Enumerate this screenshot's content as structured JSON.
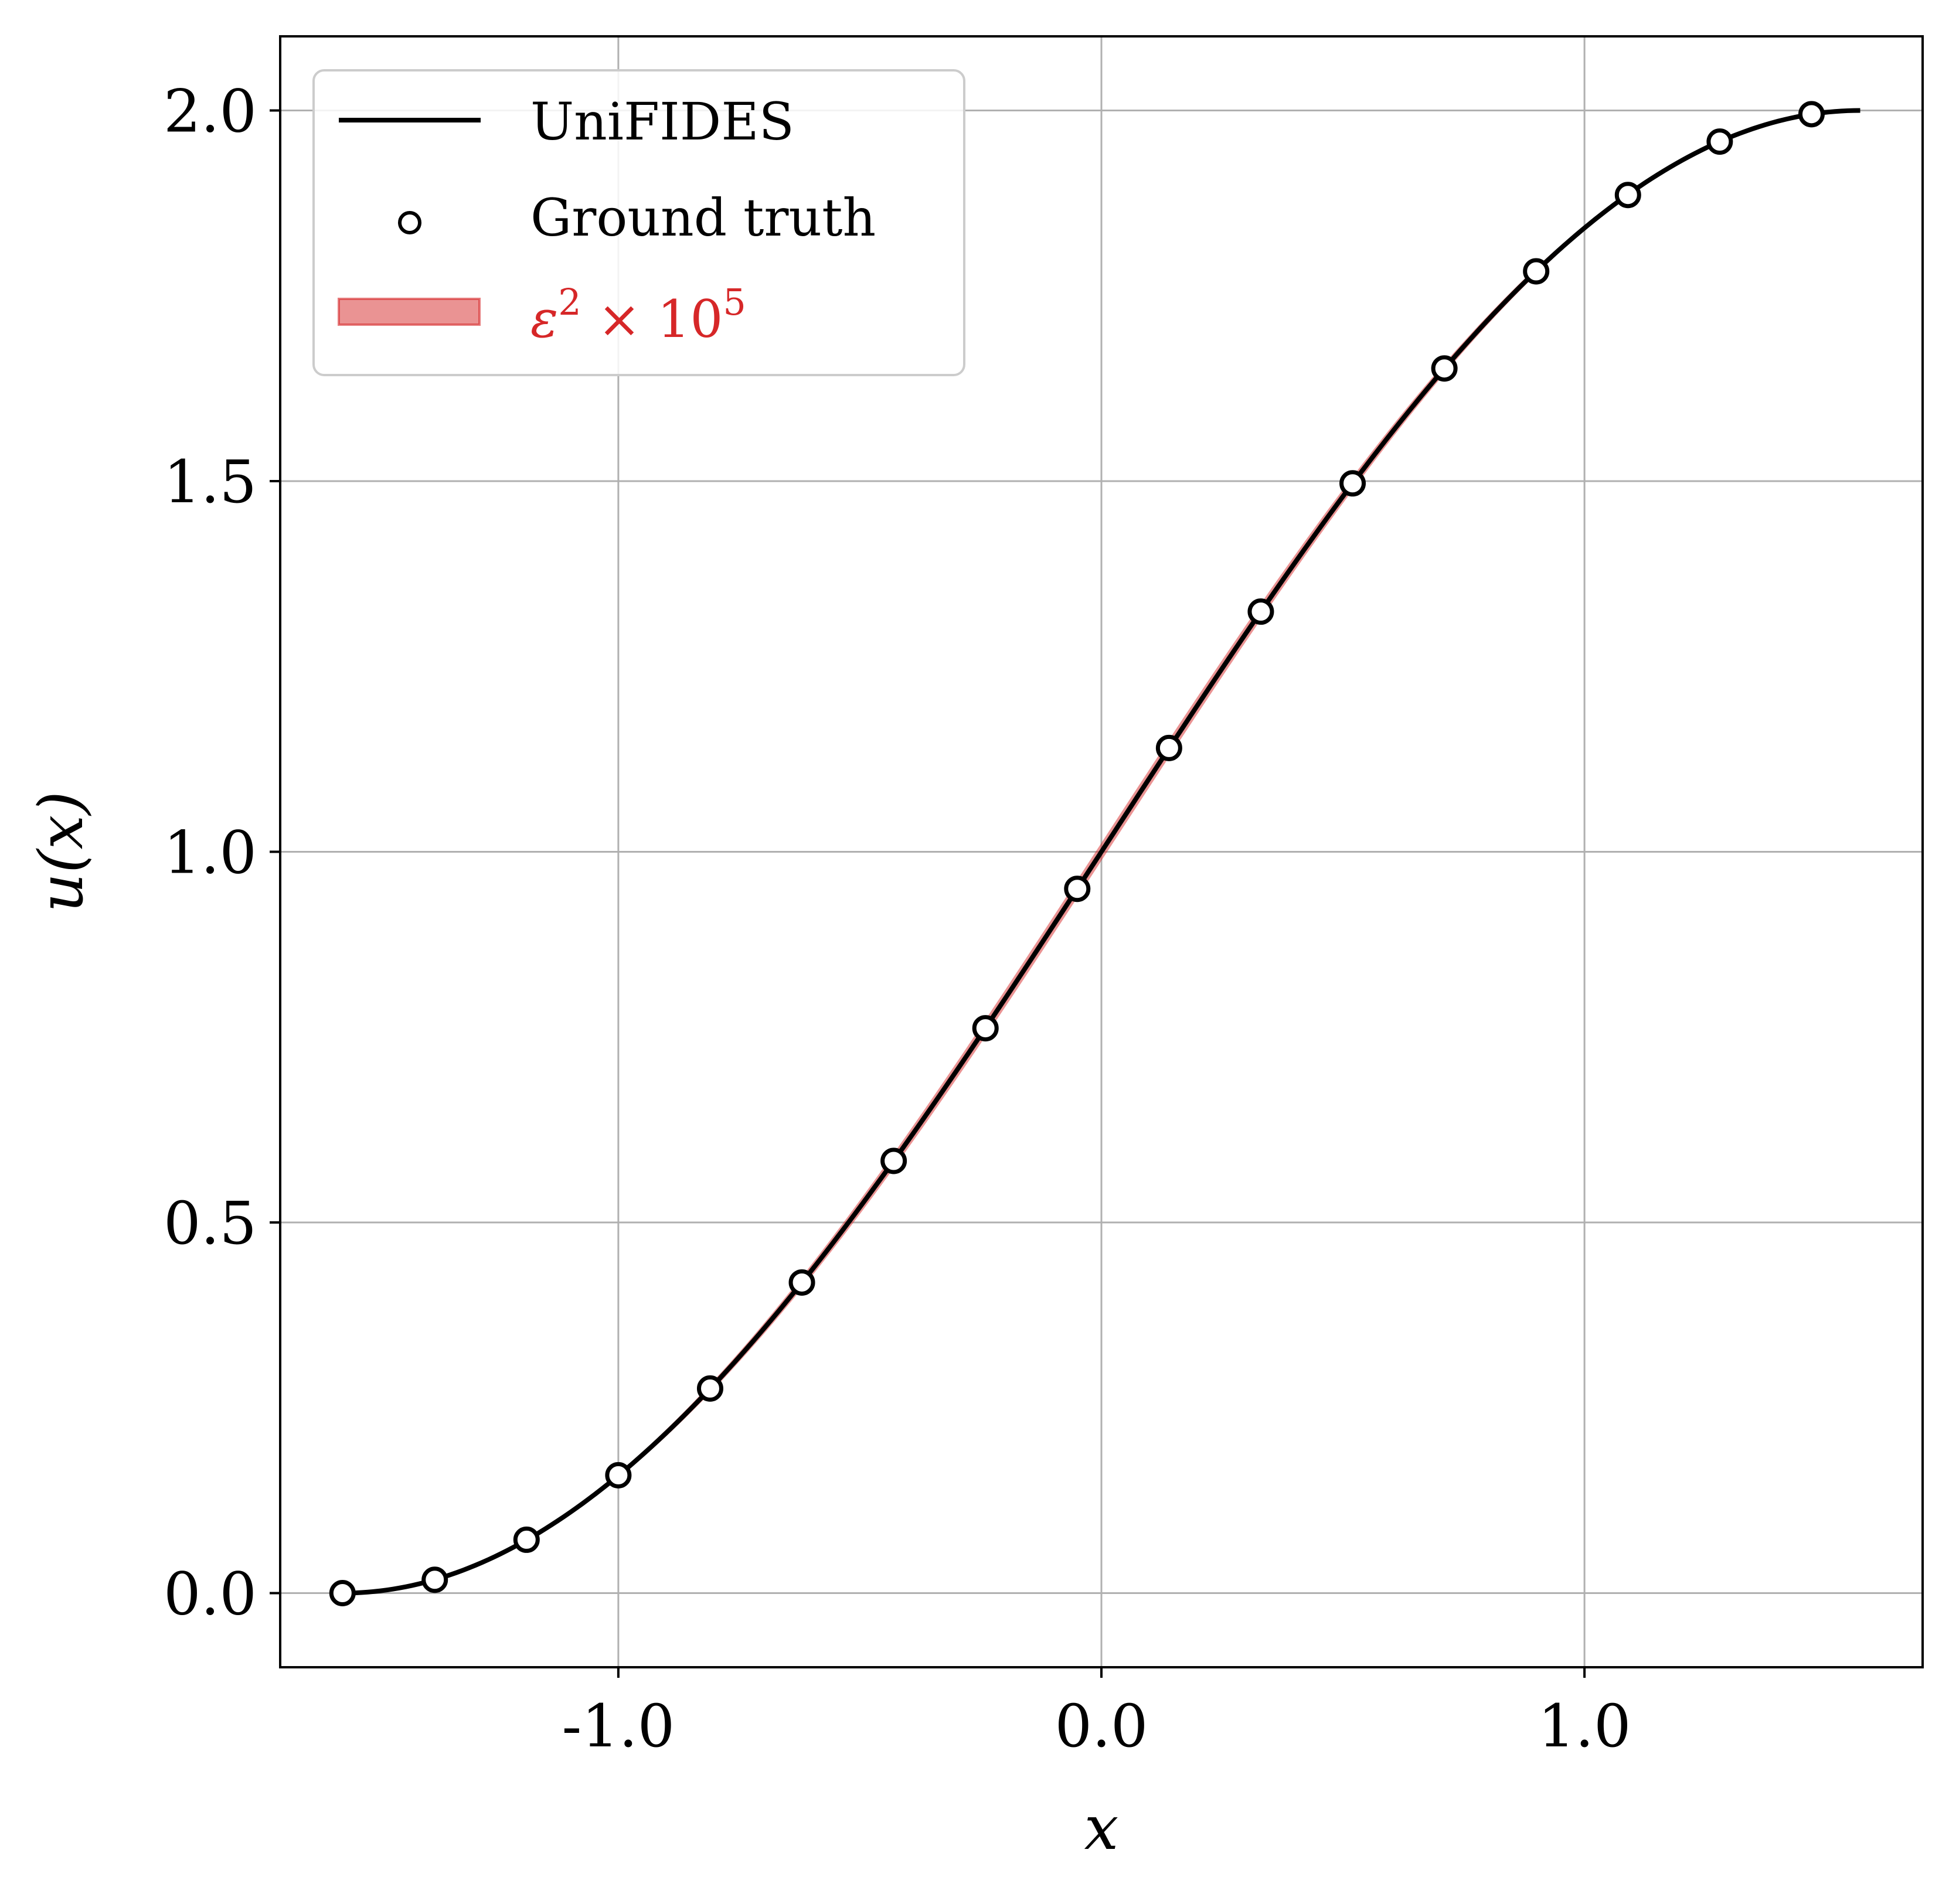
{
  "chart_data": {
    "type": "line",
    "title": "",
    "xlabel": "x",
    "ylabel": "u(x)",
    "xlim": [
      -1.7,
      1.7
    ],
    "ylim": [
      -0.1,
      2.1
    ],
    "xticks": [
      -1.0,
      0.0,
      1.0
    ],
    "xtick_labels": [
      "-1.0",
      "0.0",
      "1.0"
    ],
    "yticks": [
      0.0,
      0.5,
      1.0,
      1.5,
      2.0
    ],
    "ytick_labels": [
      "0.0",
      "0.5",
      "1.0",
      "1.5",
      "2.0"
    ],
    "grid": true,
    "legend_position": "top-left",
    "colors": {
      "line": "#000000",
      "band": "#d62728",
      "grid": "#b0b0b0"
    },
    "series": [
      {
        "name": "UniFIDES",
        "kind": "line",
        "function": "1 + sin(x)",
        "x_range": [
          -1.5708,
          1.5708
        ]
      },
      {
        "name": "Ground truth",
        "kind": "scatter",
        "marker": "open-circle",
        "x": [
          -1.571,
          -1.38,
          -1.19,
          -1.0,
          -0.81,
          -0.62,
          -0.43,
          -0.24,
          -0.05,
          0.14,
          0.33,
          0.52,
          0.71,
          0.9,
          1.09,
          1.28,
          1.47
        ],
        "y": [
          0.0,
          0.018,
          0.072,
          0.159,
          0.276,
          0.419,
          0.583,
          0.762,
          0.95,
          1.14,
          1.324,
          1.497,
          1.652,
          1.783,
          1.886,
          1.958,
          1.995
        ]
      },
      {
        "name": "ε² × 10⁵",
        "legend_label_base": "ε",
        "legend_label_exp1": "2",
        "legend_label_mid": " × 10",
        "legend_label_exp2": "5",
        "kind": "band",
        "note_text": ""
      }
    ]
  }
}
